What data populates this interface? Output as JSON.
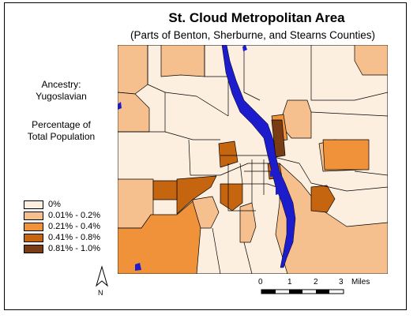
{
  "title": "St. Cloud Metropolitan Area",
  "subtitle": "(Parts of Benton, Sherburne, and Stearns Counties)",
  "ancestry_label": "Ancestry:",
  "ancestry_value": "Yugoslavian",
  "measure_line1": "Percentage of",
  "measure_line2": "Total Population",
  "legend": [
    {
      "label": "0%",
      "color": "#fcefe0"
    },
    {
      "label": "0.01% - 0.2%",
      "color": "#f6c08e"
    },
    {
      "label": "0.21% - 0.4%",
      "color": "#f0923a"
    },
    {
      "label": "0.41% - 0.8%",
      "color": "#c6650f"
    },
    {
      "label": "0.81% - 1.0%",
      "color": "#7a3c12"
    }
  ],
  "north_label": "N",
  "scale": {
    "ticks": [
      "0",
      "1",
      "2",
      "3"
    ],
    "unit": "Miles"
  },
  "river_color": "#1c1ccc"
}
